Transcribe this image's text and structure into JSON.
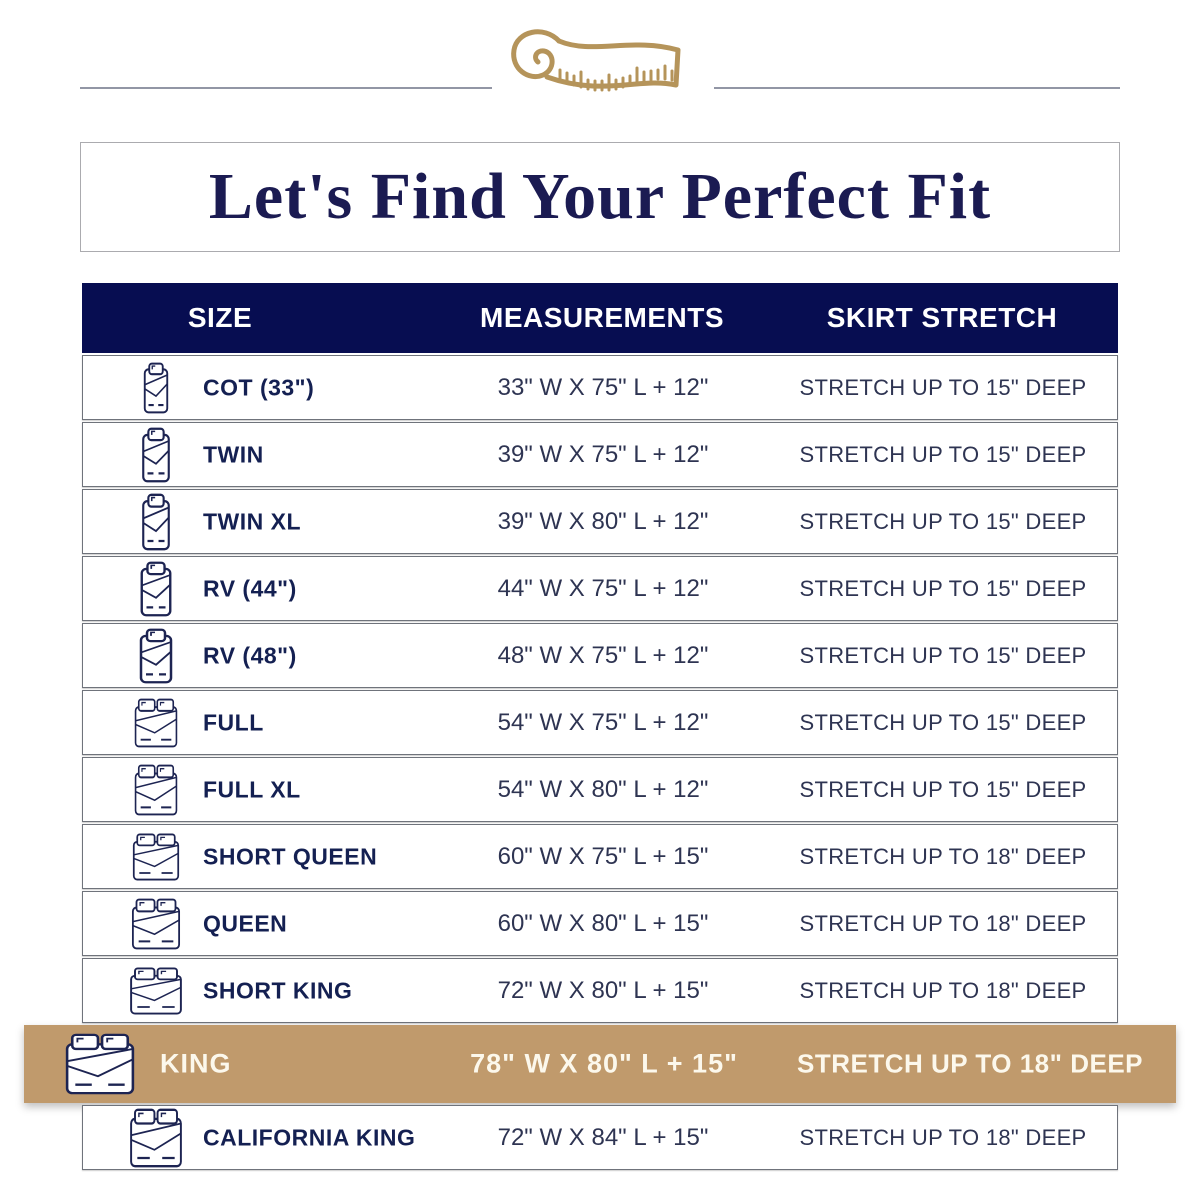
{
  "title": {
    "text": "Let's Find Your Perfect Fit"
  },
  "decor": {
    "tape_icon": "measuring-tape-icon",
    "gold": "#b5945a",
    "divider_color": "#9296a5"
  },
  "colors": {
    "header_navy": "#070d51",
    "label_navy": "#142052",
    "body_text": "#2e3452",
    "highlight_tan": "#c09a6c",
    "highlight_text": "#fcf8ec"
  },
  "table": {
    "header": {
      "columns": [
        "SIZE",
        "MEASUREMENTS",
        "SKIRT STRETCH"
      ]
    },
    "rows": [
      {
        "size": "COT (33\")",
        "measurements": "33\" W X 75\" L + 12\"",
        "stretch": "STRETCH UP TO 15\" DEEP",
        "icon": "single-bed-icon",
        "highlighted": false
      },
      {
        "size": "TWIN",
        "measurements": "39\" W X 75\" L + 12\"",
        "stretch": "STRETCH UP TO 15\" DEEP",
        "icon": "single-bed-icon",
        "highlighted": false
      },
      {
        "size": "TWIN XL",
        "measurements": "39\" W X 80\" L + 12\"",
        "stretch": "STRETCH UP TO 15\" DEEP",
        "icon": "single-bed-icon",
        "highlighted": false
      },
      {
        "size": "RV (44\")",
        "measurements": "44\" W X 75\" L + 12\"",
        "stretch": "STRETCH UP TO 15\" DEEP",
        "icon": "single-bed-icon",
        "highlighted": false
      },
      {
        "size": "RV (48\")",
        "measurements": "48\" W X 75\" L + 12\"",
        "stretch": "STRETCH UP TO 15\" DEEP",
        "icon": "single-bed-icon",
        "highlighted": false
      },
      {
        "size": "FULL",
        "measurements": "54\" W X 75\" L + 12\"",
        "stretch": "STRETCH UP TO 15\" DEEP",
        "icon": "double-bed-icon",
        "highlighted": false
      },
      {
        "size": "FULL XL",
        "measurements": "54\" W X 80\" L + 12\"",
        "stretch": "STRETCH UP TO 15\" DEEP",
        "icon": "double-bed-icon",
        "highlighted": false
      },
      {
        "size": "SHORT QUEEN",
        "measurements": "60\" W X 75\" L + 15\"",
        "stretch": "STRETCH UP TO 18\" DEEP",
        "icon": "double-bed-icon",
        "highlighted": false
      },
      {
        "size": "QUEEN",
        "measurements": "60\" W X 80\" L + 15\"",
        "stretch": "STRETCH UP TO 18\" DEEP",
        "icon": "double-bed-icon",
        "highlighted": false
      },
      {
        "size": "SHORT KING",
        "measurements": "72\" W X 80\" L + 15\"",
        "stretch": "STRETCH UP TO 18\" DEEP",
        "icon": "double-bed-icon",
        "highlighted": false
      },
      {
        "size": "KING",
        "measurements": "78\" W X 80\" L + 15\"",
        "stretch": "STRETCH UP TO 18\" DEEP",
        "icon": "double-bed-icon",
        "highlighted": true
      },
      {
        "size": "CALIFORNIA KING",
        "measurements": "72\" W X 84\" L + 15\"",
        "stretch": "STRETCH UP TO 18\" DEEP",
        "icon": "double-bed-icon",
        "highlighted": false
      }
    ]
  },
  "chart_data": {
    "type": "table",
    "title": "Let's Find Your Perfect Fit",
    "columns": [
      "SIZE",
      "MEASUREMENTS",
      "SKIRT STRETCH"
    ],
    "rows": [
      [
        "COT (33\")",
        "33\" W X 75\" L + 12\"",
        "STRETCH UP TO 15\" DEEP"
      ],
      [
        "TWIN",
        "39\" W X 75\" L + 12\"",
        "STRETCH UP TO 15\" DEEP"
      ],
      [
        "TWIN XL",
        "39\" W X 80\" L + 12\"",
        "STRETCH UP TO 15\" DEEP"
      ],
      [
        "RV (44\")",
        "44\" W X 75\" L + 12\"",
        "STRETCH UP TO 15\" DEEP"
      ],
      [
        "RV (48\")",
        "48\" W X 75\" L + 12\"",
        "STRETCH UP TO 15\" DEEP"
      ],
      [
        "FULL",
        "54\" W X 75\" L + 12\"",
        "STRETCH UP TO 15\" DEEP"
      ],
      [
        "FULL XL",
        "54\" W X 80\" L + 12\"",
        "STRETCH UP TO 15\" DEEP"
      ],
      [
        "SHORT QUEEN",
        "60\" W X 75\" L + 15\"",
        "STRETCH UP TO 18\" DEEP"
      ],
      [
        "QUEEN",
        "60\" W X 80\" L + 15\"",
        "STRETCH UP TO 18\" DEEP"
      ],
      [
        "SHORT KING",
        "72\" W X 80\" L + 15\"",
        "STRETCH UP TO 18\" DEEP"
      ],
      [
        "KING",
        "78\" W X 80\" L + 15\"",
        "STRETCH UP TO 18\" DEEP"
      ],
      [
        "CALIFORNIA KING",
        "72\" W X 84\" L + 15\"",
        "STRETCH UP TO 18\" DEEP"
      ]
    ],
    "highlighted_row": "KING"
  }
}
